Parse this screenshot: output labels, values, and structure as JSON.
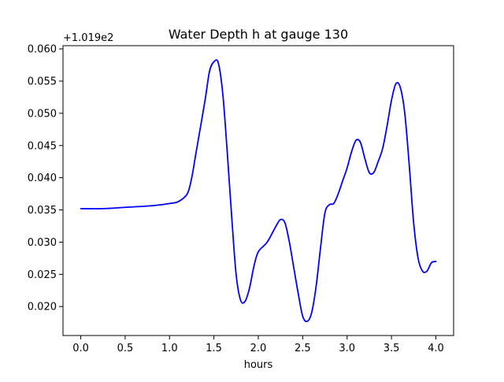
{
  "chart_data": {
    "type": "line",
    "title": "Water Depth h at gauge 130",
    "xlabel": "hours",
    "ylabel": "",
    "offset_label": "+1.019e2",
    "xlim": [
      -0.2,
      4.2
    ],
    "ylim": [
      0.0155,
      0.0605
    ],
    "x_ticks": [
      0.0,
      0.5,
      1.0,
      1.5,
      2.0,
      2.5,
      3.0,
      3.5,
      4.0
    ],
    "x_tick_labels": [
      "0.0",
      "0.5",
      "1.0",
      "1.5",
      "2.0",
      "2.5",
      "3.0",
      "3.5",
      "4.0"
    ],
    "y_ticks": [
      0.02,
      0.025,
      0.03,
      0.035,
      0.04,
      0.045,
      0.05,
      0.055,
      0.06
    ],
    "y_tick_labels": [
      "0.020",
      "0.025",
      "0.030",
      "0.035",
      "0.040",
      "0.045",
      "0.050",
      "0.055",
      "0.060"
    ],
    "grid": false,
    "series": [
      {
        "color": "#0000ff",
        "x": [
          0.0,
          0.25,
          0.5,
          0.75,
          0.9,
          1.0,
          1.1,
          1.2,
          1.25,
          1.3,
          1.4,
          1.45,
          1.5,
          1.55,
          1.6,
          1.65,
          1.7,
          1.75,
          1.8,
          1.85,
          1.9,
          1.95,
          2.0,
          2.1,
          2.2,
          2.25,
          2.3,
          2.35,
          2.4,
          2.45,
          2.5,
          2.55,
          2.6,
          2.65,
          2.7,
          2.75,
          2.8,
          2.85,
          2.9,
          2.95,
          3.0,
          3.05,
          3.1,
          3.15,
          3.2,
          3.25,
          3.3,
          3.35,
          3.4,
          3.45,
          3.5,
          3.55,
          3.6,
          3.65,
          3.7,
          3.75,
          3.8,
          3.85,
          3.9,
          3.95,
          4.0
        ],
        "y": [
          0.0352,
          0.0352,
          0.0354,
          0.0356,
          0.0358,
          0.036,
          0.0363,
          0.0375,
          0.04,
          0.044,
          0.052,
          0.0565,
          0.058,
          0.0578,
          0.053,
          0.044,
          0.034,
          0.025,
          0.021,
          0.0208,
          0.0228,
          0.0262,
          0.0285,
          0.03,
          0.0325,
          0.0335,
          0.033,
          0.03,
          0.026,
          0.022,
          0.0185,
          0.0177,
          0.019,
          0.023,
          0.029,
          0.0345,
          0.0358,
          0.036,
          0.0375,
          0.0395,
          0.0415,
          0.044,
          0.0458,
          0.0455,
          0.043,
          0.0408,
          0.0408,
          0.0425,
          0.0445,
          0.048,
          0.052,
          0.0546,
          0.054,
          0.05,
          0.042,
          0.033,
          0.0275,
          0.0255,
          0.0255,
          0.0268,
          0.027
        ]
      }
    ]
  }
}
